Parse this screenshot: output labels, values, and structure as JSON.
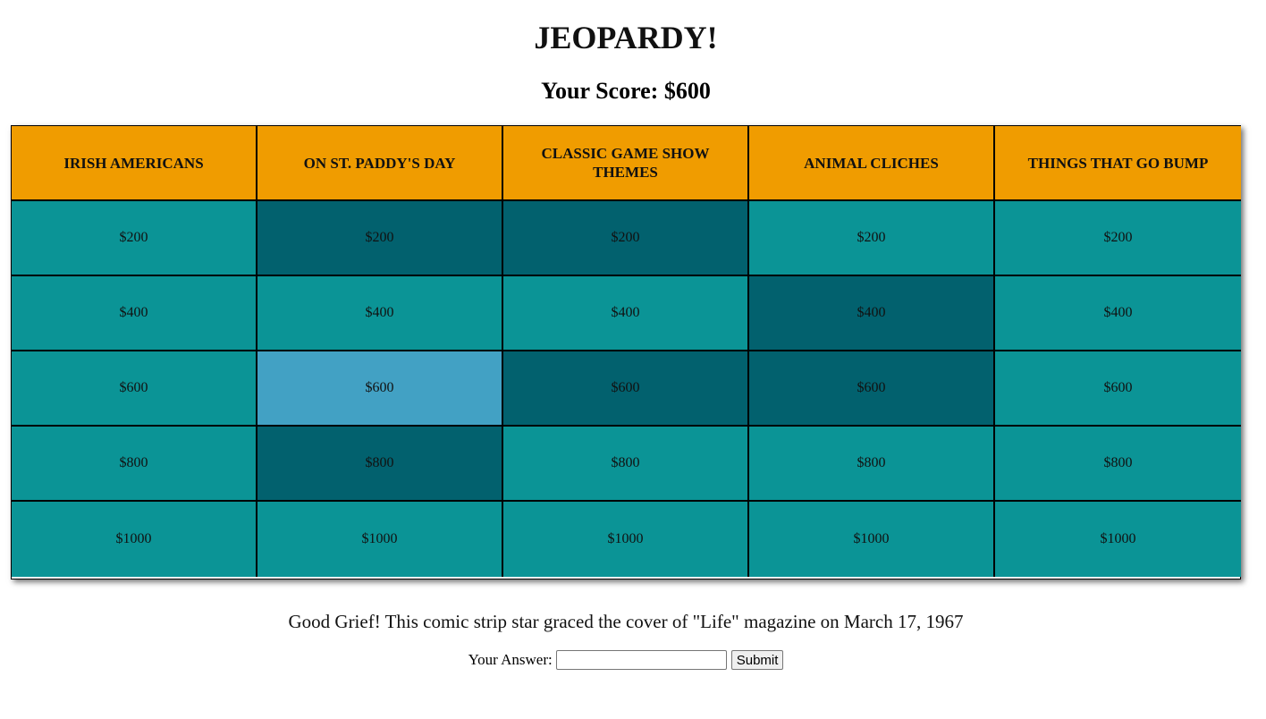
{
  "title": "JEOPARDY!",
  "score_text": "Your Score: $600",
  "board": {
    "categories": [
      "IRISH AMERICANS",
      "ON ST. PADDY'S DAY",
      "CLASSIC GAME SHOW THEMES",
      "ANIMAL CLICHES",
      "THINGS THAT GO BUMP"
    ],
    "values": [
      "$200",
      "$400",
      "$600",
      "$800",
      "$1000"
    ],
    "cell_states": [
      [
        "open",
        "used",
        "used",
        "open",
        "open"
      ],
      [
        "open",
        "open",
        "open",
        "used",
        "open"
      ],
      [
        "open",
        "selected",
        "used",
        "used",
        "open"
      ],
      [
        "open",
        "used",
        "open",
        "open",
        "open"
      ],
      [
        "open",
        "open",
        "open",
        "open",
        "open"
      ]
    ],
    "colors": {
      "header": "#f09c00",
      "open": "#0b9496",
      "used": "#02616e",
      "selected": "#42a1c4"
    }
  },
  "question": "Good Grief! This comic strip star graced the cover of \"Life\" magazine on March 17, 1967",
  "answer": {
    "label": "Your Answer:",
    "value": "",
    "submit_label": "Submit"
  }
}
